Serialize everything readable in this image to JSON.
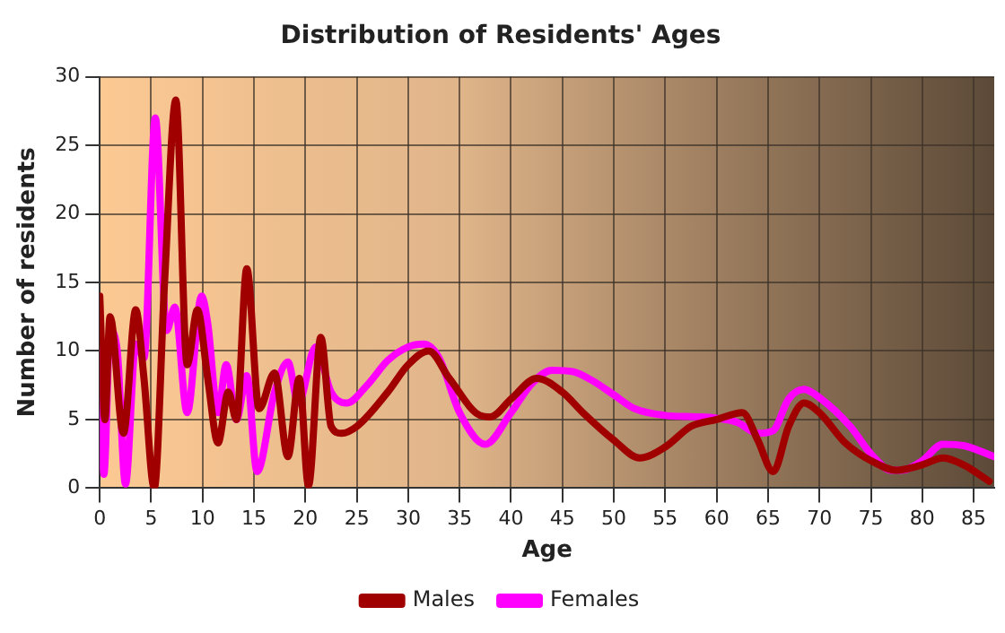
{
  "chart_data": {
    "type": "line",
    "title": "Distribution of Residents' Ages",
    "xlabel": "Age",
    "ylabel": "Number of residents",
    "xlim": [
      0,
      87
    ],
    "xticks": [
      0,
      5,
      10,
      15,
      20,
      25,
      30,
      35,
      40,
      45,
      50,
      55,
      60,
      65,
      70,
      75,
      80,
      85
    ],
    "ylim": [
      0,
      30
    ],
    "yticks": [
      0,
      5,
      10,
      15,
      20,
      25,
      30
    ],
    "grid": true,
    "legend": "bottom",
    "marker": "none",
    "line_style": "solid",
    "series": [
      {
        "name": "Males",
        "color": "#a00000",
        "x": [
          0,
          0.5,
          1,
          2.3,
          3.5,
          4.3,
          5.3,
          6.3,
          7.4,
          8.5,
          9.5,
          10.5,
          11.5,
          12.5,
          13.3,
          14.3,
          15.5,
          17,
          18.3,
          19.4,
          20.3,
          21.5,
          22.5,
          23.5,
          25,
          28,
          30,
          32,
          34,
          37,
          38,
          40,
          42.5,
          45,
          47,
          50,
          52.5,
          55,
          57.5,
          60,
          62.5,
          64,
          65.5,
          67,
          68.5,
          70,
          72.5,
          75,
          77.5,
          80,
          82,
          84,
          86.5
        ],
        "values": [
          14,
          5,
          12.5,
          4,
          13,
          8,
          0,
          15,
          28.3,
          9,
          13,
          8,
          3.3,
          7,
          5,
          16,
          5.8,
          8.4,
          2.3,
          8,
          0.2,
          11,
          4.5,
          4,
          4.5,
          7,
          9,
          10,
          8,
          5.3,
          5.2,
          6.5,
          8,
          7,
          5.5,
          3.5,
          2.2,
          3,
          4.5,
          5,
          5.5,
          3.5,
          1.2,
          4.5,
          6.2,
          5.5,
          3.3,
          2,
          1.3,
          1.7,
          2.2,
          1.7,
          0.5
        ]
      },
      {
        "name": "Females",
        "color": "#ff00ff",
        "x": [
          0,
          0.4,
          1,
          1.7,
          2.5,
          3.5,
          4.3,
          5.4,
          6.5,
          7.3,
          8.5,
          9.9,
          10.5,
          11.5,
          12.3,
          13.3,
          14.3,
          15.3,
          17,
          18.3,
          19.3,
          21,
          22.5,
          24,
          26,
          28,
          30,
          31.5,
          33,
          35,
          37.5,
          40,
          42,
          44,
          46,
          48,
          50,
          52,
          55,
          58,
          60,
          62,
          64,
          65.5,
          67,
          68.5,
          70,
          73,
          75,
          77,
          78,
          80,
          82,
          84,
          87
        ],
        "values": [
          10,
          1,
          11.5,
          10,
          0.3,
          10.5,
          9.5,
          27,
          11.5,
          13.2,
          5.5,
          14,
          12,
          5.5,
          9,
          5,
          8.2,
          1.2,
          7,
          9.2,
          6.2,
          10.3,
          7,
          6.2,
          7.5,
          9.3,
          10.3,
          10.5,
          9.5,
          5.5,
          3.2,
          5.5,
          7.6,
          8.6,
          8.5,
          7.8,
          6.8,
          5.8,
          5.3,
          5.2,
          5.1,
          4.8,
          4,
          4.2,
          6.5,
          7.2,
          6.6,
          4.5,
          2.5,
          1.3,
          1.3,
          2,
          3.2,
          3.1,
          2.3
        ]
      }
    ]
  }
}
